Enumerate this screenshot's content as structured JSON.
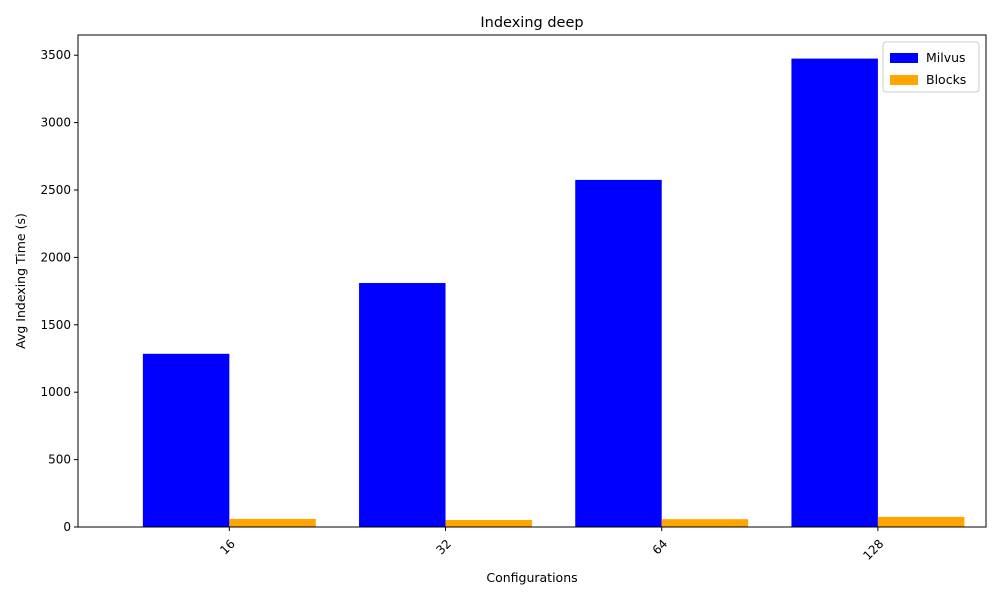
{
  "chart_data": {
    "type": "bar",
    "title": "Indexing deep",
    "xlabel": "Configurations",
    "ylabel": "Avg Indexing Time (s)",
    "categories": [
      "16",
      "32",
      "64",
      "128"
    ],
    "series": [
      {
        "name": "Milvus",
        "values": [
          1285,
          1810,
          2575,
          3475
        ],
        "color": "#0000ff"
      },
      {
        "name": "Blocks",
        "values": [
          60,
          52,
          58,
          75
        ],
        "color": "#ffa500"
      }
    ],
    "ylim": [
      0,
      3650
    ],
    "yticks": [
      0,
      500,
      1000,
      1500,
      2000,
      2500,
      3000,
      3500
    ],
    "legend_position": "top-right",
    "grid": false
  }
}
